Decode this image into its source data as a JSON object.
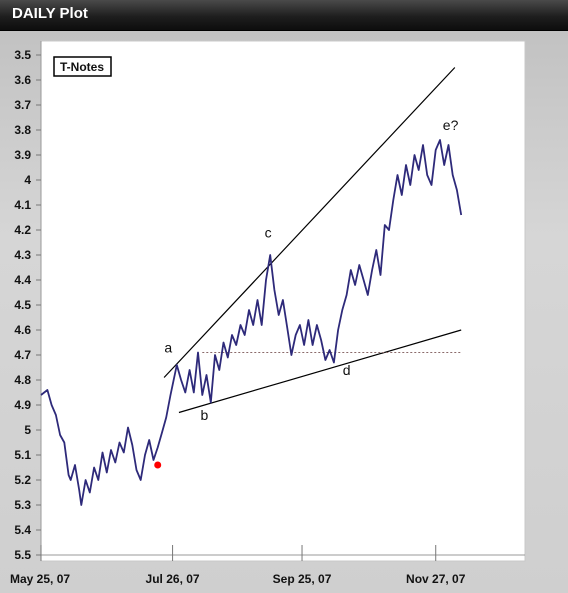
{
  "window": {
    "title": "DAILY Plot"
  },
  "chart_data": {
    "type": "line",
    "series_label": "T-Notes",
    "y_axis": {
      "inverted": true,
      "min": 3.5,
      "max": 5.5,
      "ticks": [
        "3.5",
        "3.6",
        "3.7",
        "3.8",
        "3.9",
        "4",
        "4.1",
        "4.2",
        "4.3",
        "4.4",
        "4.5",
        "4.6",
        "4.7",
        "4.8",
        "4.9",
        "5",
        "5.1",
        "5.2",
        "5.3",
        "5.4",
        "5.5"
      ]
    },
    "x_axis": {
      "start": "2007-05-25",
      "end": "2008-01-01",
      "ticks": [
        {
          "date": "2007-05-25",
          "label": "May 25, 07"
        },
        {
          "date": "2007-07-26",
          "label": "Jul 26, 07"
        },
        {
          "date": "2007-09-25",
          "label": "Sep 25, 07"
        },
        {
          "date": "2007-11-27",
          "label": "Nov 27, 07"
        }
      ]
    },
    "grid": false,
    "line_color": "#2e2a7a",
    "series": [
      {
        "values": [
          [
            "2007-05-25",
            4.86
          ],
          [
            "2007-05-28",
            4.84
          ],
          [
            "2007-05-30",
            4.9
          ],
          [
            "2007-06-01",
            4.94
          ],
          [
            "2007-06-03",
            5.02
          ],
          [
            "2007-06-05",
            5.05
          ],
          [
            "2007-06-07",
            5.18
          ],
          [
            "2007-06-08",
            5.2
          ],
          [
            "2007-06-10",
            5.14
          ],
          [
            "2007-06-12",
            5.24
          ],
          [
            "2007-06-13",
            5.3
          ],
          [
            "2007-06-15",
            5.2
          ],
          [
            "2007-06-17",
            5.25
          ],
          [
            "2007-06-19",
            5.15
          ],
          [
            "2007-06-21",
            5.2
          ],
          [
            "2007-06-23",
            5.09
          ],
          [
            "2007-06-25",
            5.17
          ],
          [
            "2007-06-27",
            5.08
          ],
          [
            "2007-06-29",
            5.13
          ],
          [
            "2007-07-01",
            5.05
          ],
          [
            "2007-07-03",
            5.09
          ],
          [
            "2007-07-05",
            4.99
          ],
          [
            "2007-07-07",
            5.06
          ],
          [
            "2007-07-09",
            5.16
          ],
          [
            "2007-07-11",
            5.2
          ],
          [
            "2007-07-13",
            5.1
          ],
          [
            "2007-07-15",
            5.04
          ],
          [
            "2007-07-17",
            5.12
          ],
          [
            "2007-07-19",
            5.07
          ],
          [
            "2007-07-21",
            5.01
          ],
          [
            "2007-07-23",
            4.95
          ],
          [
            "2007-07-25",
            4.86
          ],
          [
            "2007-07-27",
            4.78
          ],
          [
            "2007-07-28",
            4.74
          ],
          [
            "2007-07-30",
            4.8
          ],
          [
            "2007-08-01",
            4.85
          ],
          [
            "2007-08-03",
            4.76
          ],
          [
            "2007-08-05",
            4.85
          ],
          [
            "2007-08-07",
            4.69
          ],
          [
            "2007-08-09",
            4.86
          ],
          [
            "2007-08-11",
            4.78
          ],
          [
            "2007-08-13",
            4.89
          ],
          [
            "2007-08-15",
            4.7
          ],
          [
            "2007-08-17",
            4.76
          ],
          [
            "2007-08-19",
            4.65
          ],
          [
            "2007-08-21",
            4.71
          ],
          [
            "2007-08-23",
            4.62
          ],
          [
            "2007-08-25",
            4.66
          ],
          [
            "2007-08-27",
            4.58
          ],
          [
            "2007-08-29",
            4.62
          ],
          [
            "2007-08-31",
            4.52
          ],
          [
            "2007-09-02",
            4.58
          ],
          [
            "2007-09-04",
            4.48
          ],
          [
            "2007-09-06",
            4.58
          ],
          [
            "2007-09-08",
            4.4
          ],
          [
            "2007-09-10",
            4.3
          ],
          [
            "2007-09-12",
            4.44
          ],
          [
            "2007-09-14",
            4.54
          ],
          [
            "2007-09-16",
            4.48
          ],
          [
            "2007-09-18",
            4.59
          ],
          [
            "2007-09-20",
            4.7
          ],
          [
            "2007-09-22",
            4.62
          ],
          [
            "2007-09-24",
            4.58
          ],
          [
            "2007-09-26",
            4.66
          ],
          [
            "2007-09-28",
            4.56
          ],
          [
            "2007-09-30",
            4.66
          ],
          [
            "2007-10-02",
            4.58
          ],
          [
            "2007-10-04",
            4.64
          ],
          [
            "2007-10-06",
            4.72
          ],
          [
            "2007-10-08",
            4.68
          ],
          [
            "2007-10-10",
            4.73
          ],
          [
            "2007-10-12",
            4.6
          ],
          [
            "2007-10-14",
            4.52
          ],
          [
            "2007-10-16",
            4.46
          ],
          [
            "2007-10-18",
            4.36
          ],
          [
            "2007-10-20",
            4.42
          ],
          [
            "2007-10-22",
            4.34
          ],
          [
            "2007-10-24",
            4.4
          ],
          [
            "2007-10-26",
            4.46
          ],
          [
            "2007-10-28",
            4.36
          ],
          [
            "2007-10-30",
            4.28
          ],
          [
            "2007-11-01",
            4.38
          ],
          [
            "2007-11-03",
            4.18
          ],
          [
            "2007-11-05",
            4.2
          ],
          [
            "2007-11-07",
            4.08
          ],
          [
            "2007-11-09",
            3.98
          ],
          [
            "2007-11-11",
            4.06
          ],
          [
            "2007-11-13",
            3.94
          ],
          [
            "2007-11-15",
            4.02
          ],
          [
            "2007-11-17",
            3.9
          ],
          [
            "2007-11-19",
            3.96
          ],
          [
            "2007-11-21",
            3.86
          ],
          [
            "2007-11-23",
            3.98
          ],
          [
            "2007-11-25",
            4.02
          ],
          [
            "2007-11-27",
            3.88
          ],
          [
            "2007-11-29",
            3.84
          ],
          [
            "2007-12-01",
            3.94
          ],
          [
            "2007-12-03",
            3.86
          ],
          [
            "2007-12-05",
            3.98
          ],
          [
            "2007-12-07",
            4.04
          ],
          [
            "2007-12-09",
            4.14
          ]
        ]
      }
    ],
    "marker": {
      "date": "2007-07-19",
      "value": 5.14,
      "color": "#ff0000"
    },
    "trendlines": [
      {
        "from": [
          "2007-07-22",
          4.79
        ],
        "to": [
          "2007-12-06",
          3.55
        ]
      },
      {
        "from": [
          "2007-07-29",
          4.93
        ],
        "to": [
          "2007-12-09",
          4.6
        ]
      },
      {
        "from": [
          "2007-08-09",
          4.69
        ],
        "to": [
          "2007-12-09",
          4.69
        ],
        "style": "dashed"
      }
    ],
    "annotations": [
      {
        "text": "a",
        "date": "2007-07-24",
        "value": 4.69
      },
      {
        "text": "b",
        "date": "2007-08-10",
        "value": 4.96
      },
      {
        "text": "c",
        "date": "2007-09-09",
        "value": 4.23
      },
      {
        "text": "d",
        "date": "2007-10-16",
        "value": 4.78
      },
      {
        "text": "e?",
        "date": "2007-12-04",
        "value": 3.8
      }
    ]
  }
}
